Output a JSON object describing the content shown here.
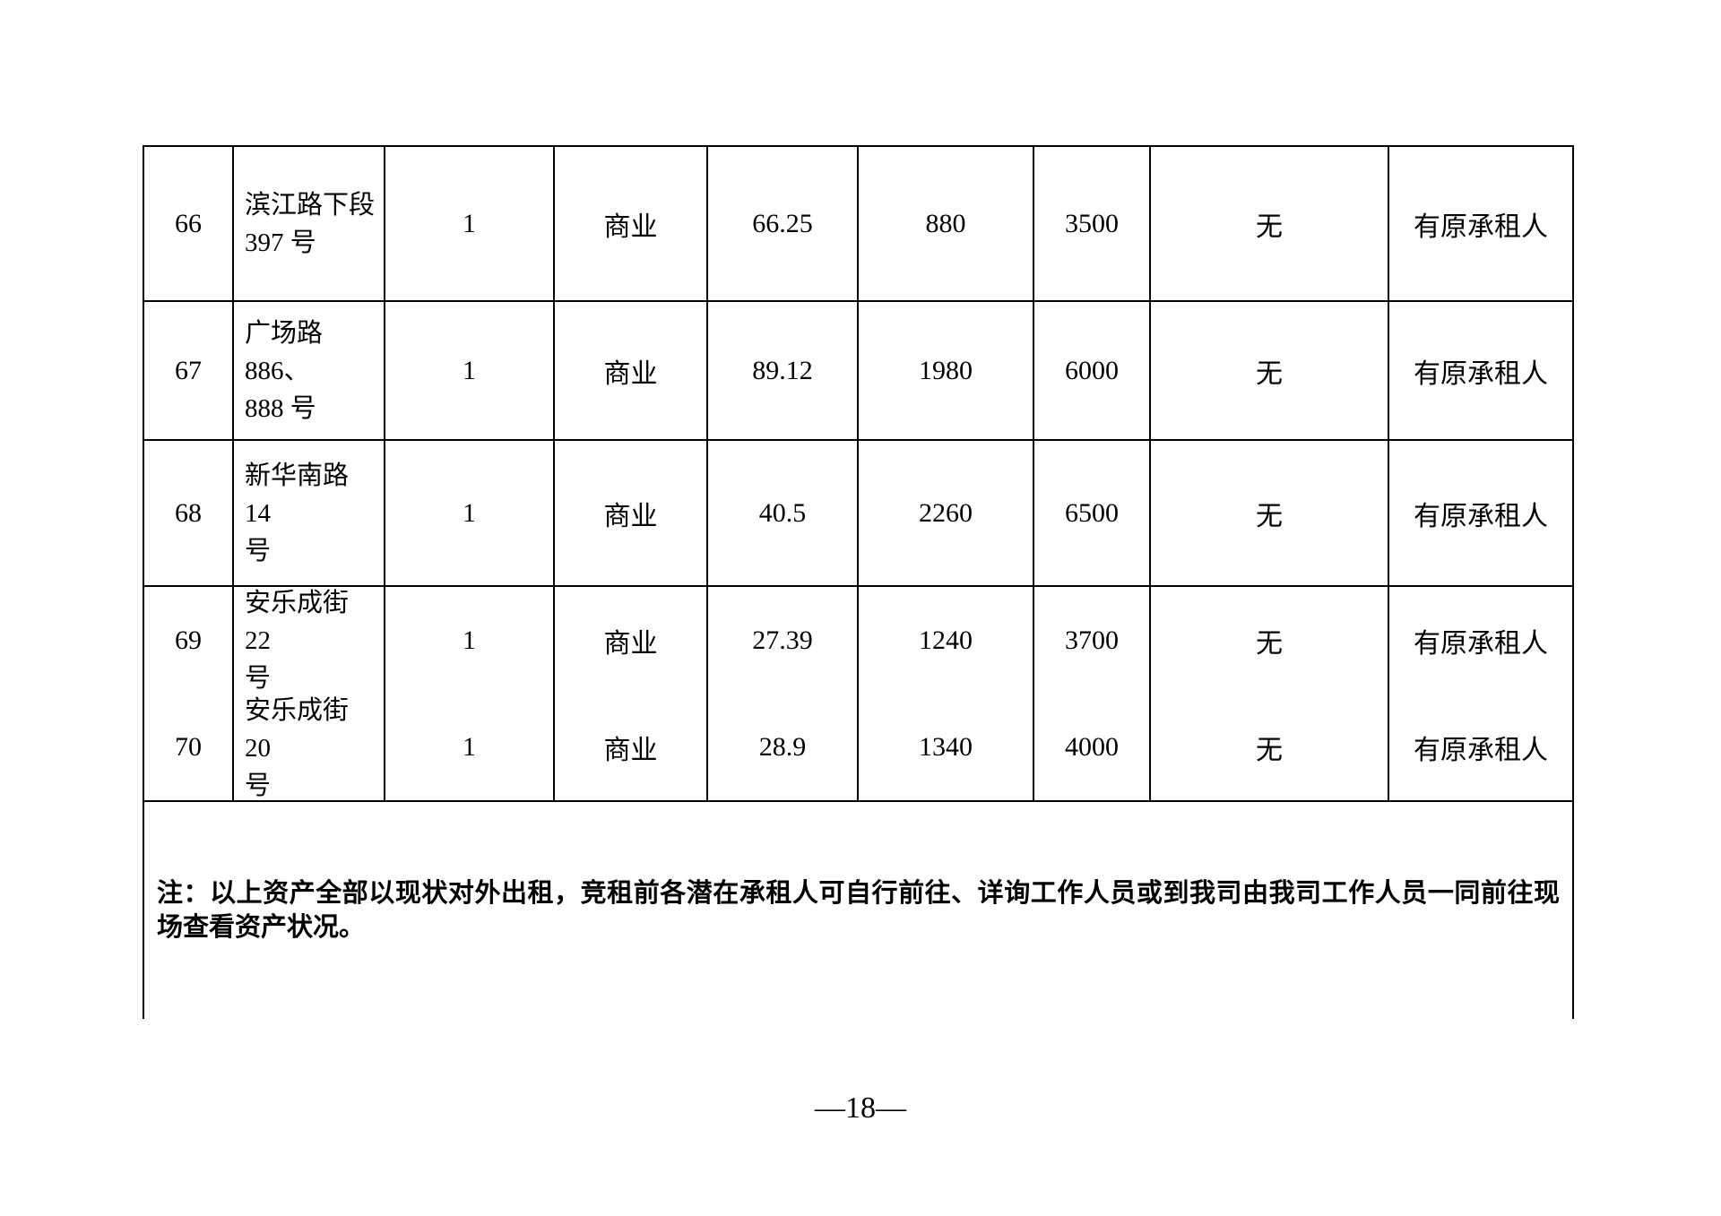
{
  "document": {
    "table": {
      "rows": [
        {
          "no": "66",
          "address": "滨江路下段\n397 号",
          "count": "1",
          "usage": "商业",
          "area": "66.25",
          "value1": "880",
          "value2": "3500",
          "remark": "无",
          "tenant": "有原承租人"
        },
        {
          "no": "67",
          "address": "广场路 886、\n888 号",
          "count": "1",
          "usage": "商业",
          "area": "89.12",
          "value1": "1980",
          "value2": "6000",
          "remark": "无",
          "tenant": "有原承租人"
        },
        {
          "no": "68",
          "address": "新华南路 14\n号",
          "count": "1",
          "usage": "商业",
          "area": "40.5",
          "value1": "2260",
          "value2": "6500",
          "remark": "无",
          "tenant": "有原承租人"
        },
        {
          "no": "69",
          "address": "安乐成街 22\n号",
          "count": "1",
          "usage": "商业",
          "area": "27.39",
          "value1": "1240",
          "value2": "3700",
          "remark": "无",
          "tenant": "有原承租人"
        },
        {
          "no": "70",
          "address": "安乐成街 20\n号",
          "count": "1",
          "usage": "商业",
          "area": "28.9",
          "value1": "1340",
          "value2": "4000",
          "remark": "无",
          "tenant": "有原承租人"
        }
      ],
      "note": "注：以上资产全部以现状对外出租，竞租前各潜在承租人可自行前往、详询工作人员或到我司由我司工作人员一同前往现场查看资产状况。"
    },
    "page_number": "—18—"
  }
}
